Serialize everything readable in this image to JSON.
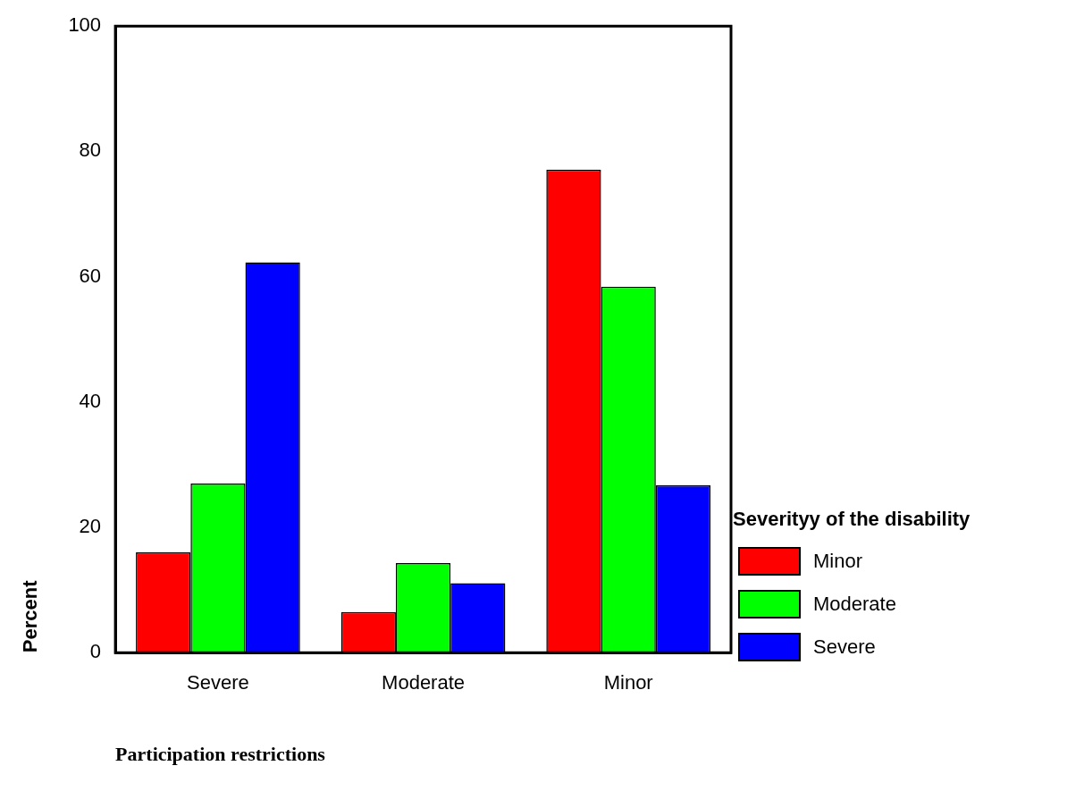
{
  "chart_data": {
    "type": "bar",
    "xlabel": "Participation restrictions",
    "ylabel": "Percent",
    "legend_title": "Severityy of the disability",
    "categories": [
      "Severe",
      "Moderate",
      "Minor"
    ],
    "series": [
      {
        "name": "Minor",
        "color": "#ff0000",
        "values": [
          16,
          6.5,
          77.1
        ]
      },
      {
        "name": "Moderate",
        "color": "#00ff00",
        "values": [
          27,
          14.3,
          58.4
        ]
      },
      {
        "name": "Severe",
        "color": "#0000ff",
        "values": [
          62.3,
          11.1,
          26.7
        ]
      }
    ],
    "ylim": [
      0,
      100
    ],
    "yticks": [
      0,
      20,
      40,
      60,
      80,
      100
    ],
    "grid": false,
    "legend": "right"
  }
}
